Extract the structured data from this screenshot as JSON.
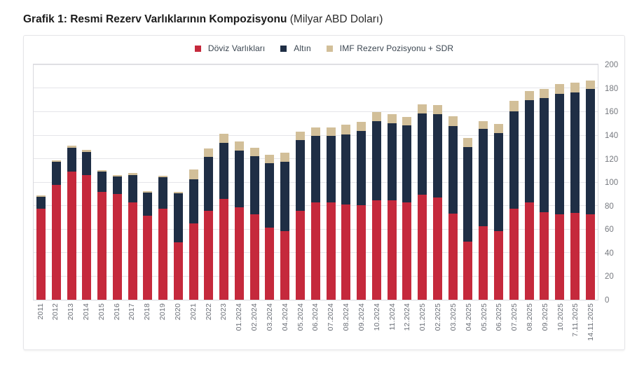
{
  "title": {
    "main": "Grafik 1: Resmi Rezerv Varlıklarının Kompozisyonu",
    "unit": "(Milyar ABD Doları)"
  },
  "legend": {
    "position": "top-center",
    "items": [
      {
        "label": "Döviz Varlıkları",
        "color": "#c5293c"
      },
      {
        "label": "Altın",
        "color": "#1f2e45"
      },
      {
        "label": "IMF Rezerv Pozisyonu + SDR",
        "color": "#d2bf99"
      }
    ]
  },
  "chart_data": {
    "type": "bar",
    "stacked": true,
    "title": "Grafik 1: Resmi Rezerv Varlıklarının Kompozisyonu (Milyar ABD Doları)",
    "ylabel": "Milyar ABD Doları",
    "ylim": [
      0,
      200
    ],
    "yticks": [
      0,
      20,
      40,
      60,
      80,
      100,
      120,
      140,
      160,
      180,
      200
    ],
    "y_axis_side": "right",
    "grid": "horizontal",
    "x_tick_rotation": 90,
    "categories": [
      "2011",
      "2012",
      "2013",
      "2014",
      "2015",
      "2016",
      "2017",
      "2018",
      "2019",
      "2020",
      "2021",
      "2022",
      "2023",
      "01.2024",
      "02.2024",
      "03.2024",
      "04.2024",
      "05.2024",
      "06.2024",
      "07.2024",
      "08.2024",
      "09.2024",
      "10.2024",
      "11.2024",
      "12.2024",
      "01.2025",
      "02.2025",
      "03.2025",
      "04.2025",
      "05.2025",
      "06.2025",
      "07.2025",
      "08.2025",
      "09.2025",
      "10.2025",
      "7.11.2025",
      "14.11.2025"
    ],
    "series": [
      {
        "name": "Döviz Varlıkları",
        "color": "#c5293c",
        "values": [
          77.5,
          98.0,
          109.3,
          105.8,
          91.5,
          89.8,
          82.6,
          71.3,
          77.6,
          48.7,
          64.8,
          75.7,
          85.6,
          78.8,
          72.7,
          61.5,
          58.4,
          75.7,
          82.9,
          83.0,
          81.0,
          80.2,
          84.5,
          84.9,
          83.0,
          89.5,
          86.9,
          73.1,
          49.5,
          62.3,
          58.3,
          77.2,
          83.0,
          74.3,
          72.7,
          73.7,
          72.7
        ]
      },
      {
        "name": "Altın",
        "color": "#1f2e45",
        "values": [
          10.0,
          19.2,
          20.2,
          20.0,
          17.6,
          15.0,
          23.8,
          19.9,
          26.4,
          42.0,
          37.8,
          45.6,
          47.8,
          48.1,
          49.2,
          54.8,
          59.0,
          60.1,
          56.7,
          56.7,
          59.7,
          63.4,
          67.7,
          65.4,
          65.1,
          69.2,
          70.9,
          74.9,
          80.4,
          82.8,
          83.3,
          83.2,
          86.9,
          97.3,
          102.5,
          102.9,
          106.4
        ]
      },
      {
        "name": "IMF Rezerv Pozisyonu + SDR",
        "color": "#d2bf99",
        "values": [
          1.3,
          1.6,
          1.4,
          1.5,
          1.4,
          1.2,
          1.4,
          1.2,
          1.2,
          1.2,
          8.5,
          7.5,
          8.0,
          7.5,
          7.5,
          7.2,
          7.5,
          6.9,
          6.9,
          6.9,
          8.5,
          7.5,
          7.6,
          7.6,
          7.2,
          7.6,
          7.7,
          7.9,
          7.5,
          6.9,
          7.9,
          8.5,
          7.7,
          7.5,
          8.3,
          7.9,
          7.5
        ]
      }
    ]
  }
}
